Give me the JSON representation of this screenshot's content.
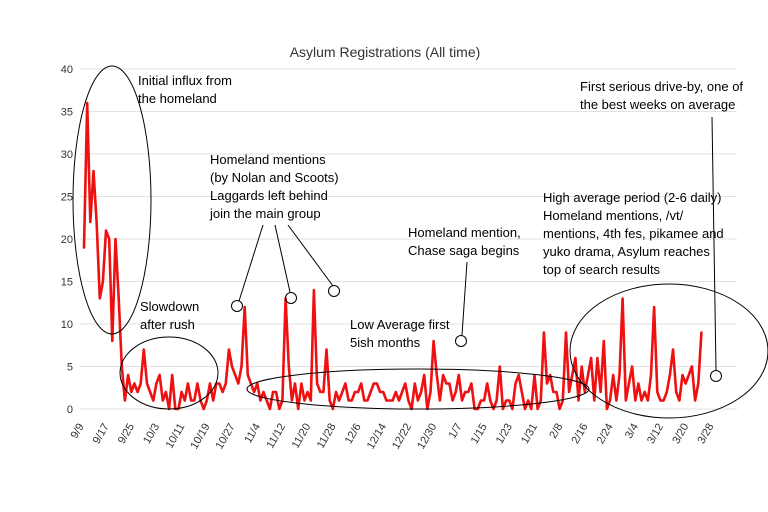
{
  "chart_data": {
    "type": "line",
    "title": "Asylum Registrations (All time)",
    "xlabel": "",
    "ylabel": "",
    "ylim": [
      0,
      40
    ],
    "yticks": [
      0,
      5,
      10,
      15,
      20,
      25,
      30,
      35,
      40
    ],
    "grid": true,
    "line_color": "#ee1111",
    "x_tick_labels": [
      "9/9",
      "9/17",
      "9/25",
      "10/3",
      "10/11",
      "10/19",
      "10/27",
      "11/4",
      "11/12",
      "11/20",
      "11/28",
      "12/6",
      "12/14",
      "12/22",
      "12/30",
      "1/7",
      "1/15",
      "1/23",
      "1/31",
      "2/8",
      "2/16",
      "2/24",
      "3/4",
      "3/12",
      "3/20",
      "3/28"
    ],
    "series": [
      {
        "values": [
          19,
          36,
          22,
          28,
          22,
          13,
          15,
          21,
          20,
          8,
          20,
          13,
          5,
          1,
          4,
          2,
          3,
          2,
          3,
          7,
          3,
          2,
          1,
          3,
          4,
          1,
          2,
          0,
          4,
          0,
          0,
          2,
          1,
          3,
          1,
          1,
          3,
          1,
          0,
          1,
          3,
          1,
          3,
          3,
          2,
          3,
          7,
          5,
          4,
          3,
          5,
          12,
          4,
          3,
          2,
          3,
          1,
          2,
          1,
          0,
          2,
          2,
          0,
          1,
          13,
          5,
          1,
          3,
          0,
          3,
          1,
          2,
          1,
          14,
          3,
          2,
          2,
          7,
          1,
          0,
          2,
          1,
          2,
          3,
          1,
          1,
          2,
          2,
          3,
          1,
          1,
          2,
          3,
          3,
          2,
          2,
          1,
          1,
          1,
          2,
          1,
          2,
          3,
          1,
          0,
          3,
          1,
          2,
          4,
          0,
          2,
          8,
          4,
          1,
          4,
          3,
          3,
          1,
          2,
          4,
          1,
          2,
          2,
          3,
          0,
          0,
          1,
          1,
          3,
          1,
          0,
          1,
          5,
          0,
          1,
          1,
          0,
          3,
          4,
          2,
          0,
          1,
          0,
          4,
          0,
          1,
          9,
          3,
          4,
          2,
          2,
          0,
          1,
          9,
          2,
          4,
          6,
          1,
          5,
          2,
          4,
          6,
          1,
          6,
          2,
          8,
          0,
          1,
          4,
          1,
          4,
          13,
          1,
          3,
          5,
          1,
          3,
          1,
          2,
          1,
          4,
          12,
          2,
          1,
          1,
          2,
          4,
          7,
          2,
          1,
          4,
          3,
          4,
          5,
          1,
          3,
          9
        ]
      }
    ],
    "annotations": [
      {
        "text": [
          "Initial influx from",
          "the homeland"
        ]
      },
      {
        "text": [
          "Slowdown",
          "after rush"
        ]
      },
      {
        "text": [
          "Homeland mentions",
          "(by Nolan and Scoots)",
          "Laggards left behind",
          "join the main group"
        ]
      },
      {
        "text": [
          "Low Average first",
          "5ish months"
        ]
      },
      {
        "text": [
          "Homeland mention,",
          "Chase saga begins"
        ]
      },
      {
        "text": [
          "First serious drive-by, one of",
          "the best weeks on average"
        ]
      },
      {
        "text": [
          "High average period (2-6 daily)",
          "Homeland mentions, /vt/",
          "mentions, 4th fes, pikamee and",
          "yuko drama, Asylum reaches",
          "top of search results"
        ]
      }
    ]
  }
}
